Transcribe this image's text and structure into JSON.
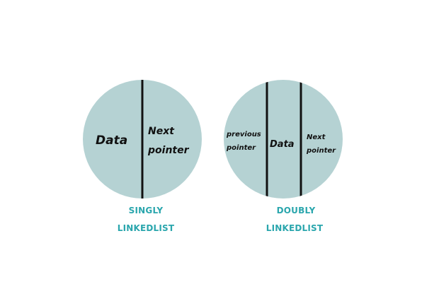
{
  "colors": {
    "circle_fill": "#b5d2d3",
    "divider": "#111111",
    "text": "#111111",
    "caption": "#2aa6ad"
  },
  "singly": {
    "data_label": "Data",
    "next_line1": "Next",
    "next_line2": "pointer",
    "caption_line1": "SINGLY",
    "caption_line2": "LINKEDLIST"
  },
  "doubly": {
    "prev_line1": "previous",
    "prev_line2": "pointer",
    "data_label": "Data",
    "next_line1": "Next",
    "next_line2": "pointer",
    "caption_line1": "DOUBLY",
    "caption_line2": "LINKEDLIST"
  }
}
